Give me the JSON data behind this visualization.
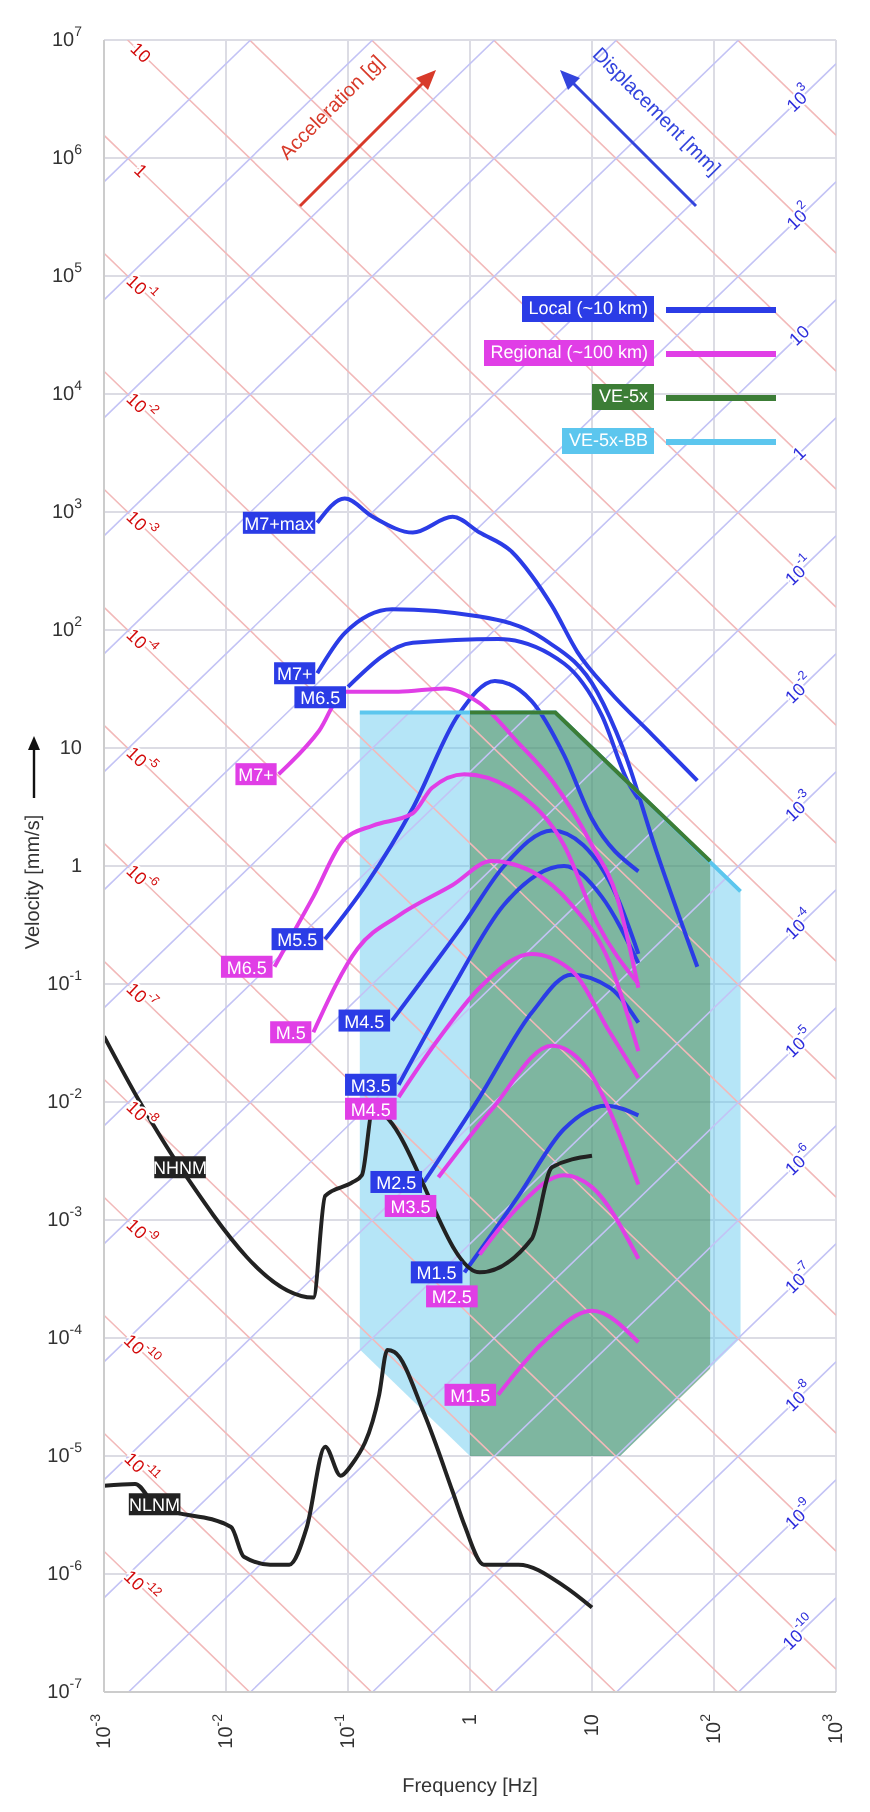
{
  "chart_data": {
    "type": "line",
    "xlabel": "Frequency [Hz]",
    "ylabel": "Velocity [mm/s]",
    "log": "xy",
    "grid": true,
    "legend": "top right",
    "xlim": [
      0.001,
      1000
    ],
    "ylim": [
      1e-07,
      10000000.0
    ],
    "xticks": [
      {
        "value": 0.001,
        "label": "10$^{-3}$"
      },
      {
        "value": 0.01,
        "label": "10$^{-2}$"
      },
      {
        "value": 0.1,
        "label": "10$^{-1}$"
      },
      1,
      10,
      {
        "value": 100,
        "label": "10$^{2}$"
      },
      {
        "value": 1000,
        "label": "10$^{3}$"
      }
    ],
    "yticks": [
      {
        "value": 1e-07,
        "label": "10$^{-7}$"
      },
      {
        "value": 1e-06,
        "label": "10$^{-6}$"
      },
      {
        "value": 1e-05,
        "label": "10$^{-5}$"
      },
      {
        "value": 0.0001,
        "label": "10$^{-4}$"
      },
      {
        "value": 0.001,
        "label": "10$^{-3}$"
      },
      {
        "value": 0.01,
        "label": "10$^{-2}$"
      },
      {
        "value": 0.1,
        "label": "10$^{-1}$"
      },
      1,
      10,
      {
        "value": 100,
        "label": "10$^{2}$"
      },
      {
        "value": 1000,
        "label": "10$^{3}$"
      },
      {
        "value": 10000,
        "label": "10$^{4}$"
      },
      {
        "value": 100000,
        "label": "10$^{5}$"
      },
      {
        "value": 1000000,
        "label": "10$^{6}$"
      },
      {
        "value": 10000000,
        "label": "10$^{7}$"
      }
    ],
    "series": [
      {
        "type": "line",
        "color": "#f2b9b9",
        "x": [
          156,
          1000
        ],
        "values": [
          10000000.0,
          1560000.0
        ]
      },
      {
        "type": "line",
        "color": "#f2b9b9",
        "x": [
          15.6,
          1000
        ],
        "values": [
          10000000.0,
          156000.0
        ]
      },
      {
        "type": "line",
        "color": "#f2b9b9",
        "x": [
          1.56,
          1000
        ],
        "values": [
          10000000.0,
          15600.0
        ]
      },
      {
        "type": "line",
        "color": "#f2b9b9",
        "x": [
          0.156,
          1000
        ],
        "values": [
          10000000.0,
          1560
        ]
      },
      {
        "type": "line",
        "color": "#f2b9b9",
        "x": [
          0.0156,
          1000
        ],
        "values": [
          10000000.0,
          156
        ]
      },
      {
        "type": "line",
        "color": "#f2b9b9",
        "x": [
          0.00156,
          0.002,
          1000
        ],
        "values": [
          10000000.0,
          7800000.0,
          15.6
        ]
      },
      {
        "type": "line",
        "color": "#f2b9b9",
        "x": [
          0.001,
          0.002,
          1000
        ],
        "values": [
          1560000.0,
          780000.0,
          1.56
        ]
      },
      {
        "type": "line",
        "color": "#f2b9b9",
        "x": [
          0.001,
          0.002,
          1000
        ],
        "values": [
          156000.0,
          78000.0,
          0.156
        ]
      },
      {
        "type": "line",
        "color": "#f2b9b9",
        "x": [
          0.001,
          0.002,
          1000
        ],
        "values": [
          15600.0,
          7800,
          0.0156
        ]
      },
      {
        "type": "line",
        "color": "#f2b9b9",
        "x": [
          0.001,
          0.002,
          1000
        ],
        "values": [
          1560,
          780,
          0.00156
        ]
      },
      {
        "type": "line",
        "color": "#f2b9b9",
        "x": [
          0.001,
          0.002,
          1000
        ],
        "values": [
          156,
          78,
          0.000156
        ]
      },
      {
        "type": "line",
        "color": "#f2b9b9",
        "x": [
          0.001,
          0.002,
          1000
        ],
        "values": [
          15.6,
          7.8,
          1.56e-05
        ]
      },
      {
        "type": "line",
        "color": "#f2b9b9",
        "x": [
          0.001,
          0.002,
          1000
        ],
        "values": [
          1.56,
          0.78,
          1.56e-06
        ]
      },
      {
        "type": "line",
        "color": "#f2b9b9",
        "x": [
          0.001,
          0.002,
          1000
        ],
        "values": [
          0.156,
          0.078,
          1.56e-07
        ]
      },
      {
        "type": "line",
        "color": "#f2b9b9",
        "x": [
          0.001,
          0.002,
          156
        ],
        "values": [
          0.0156,
          0.0078,
          1e-07
        ]
      },
      {
        "type": "line",
        "color": "#f2b9b9",
        "x": [
          0.001,
          0.002,
          15.6
        ],
        "values": [
          0.00156,
          0.00078,
          1e-07
        ]
      },
      {
        "type": "line",
        "color": "#f2b9b9",
        "x": [
          0.001,
          0.002,
          1.56
        ],
        "values": [
          0.000156,
          7.8e-05,
          1e-07
        ]
      },
      {
        "type": "line",
        "color": "#f2b9b9",
        "x": [
          0.001,
          0.002,
          0.156
        ],
        "values": [
          1.56e-05,
          7.8e-06,
          1e-07
        ]
      },
      {
        "type": "line",
        "color": "#f2b9b9",
        "x": [
          0.001,
          0.002,
          0.0156
        ],
        "values": [
          1.56e-06,
          7.8e-07,
          1e-07
        ]
      },
      {
        "type": "line",
        "color": "#c3c3f5",
        "x": [
          0.001,
          0.0159
        ],
        "values": [
          628000.0,
          10000000.0
        ]
      },
      {
        "type": "line",
        "color": "#c3c3f5",
        "x": [
          0.001,
          0.159
        ],
        "values": [
          62800.0,
          10000000.0
        ]
      },
      {
        "type": "line",
        "color": "#c3c3f5",
        "x": [
          0.001,
          1.59
        ],
        "values": [
          6280,
          10000000.0
        ]
      },
      {
        "type": "line",
        "color": "#c3c3f5",
        "x": [
          0.001,
          15.9
        ],
        "values": [
          628,
          10000000.0
        ]
      },
      {
        "type": "line",
        "color": "#c3c3f5",
        "x": [
          0.001,
          159
        ],
        "values": [
          62.8,
          10000000.0
        ]
      },
      {
        "type": "line",
        "color": "#c3c3f5",
        "x": [
          0.001,
          500,
          1000
        ],
        "values": [
          6.28,
          3140000.0,
          6280000.0
        ]
      },
      {
        "type": "line",
        "color": "#c3c3f5",
        "x": [
          0.001,
          500,
          1000
        ],
        "values": [
          0.628,
          314000.0,
          628000.0
        ]
      },
      {
        "type": "line",
        "color": "#c3c3f5",
        "x": [
          0.001,
          500,
          1000
        ],
        "values": [
          0.0628,
          31400.0,
          62800.0
        ]
      },
      {
        "type": "line",
        "color": "#c3c3f5",
        "x": [
          0.001,
          500,
          1000
        ],
        "values": [
          0.00628,
          3140,
          6280
        ]
      },
      {
        "type": "line",
        "color": "#c3c3f5",
        "x": [
          0.001,
          500,
          1000
        ],
        "values": [
          0.000628,
          314,
          628
        ]
      },
      {
        "type": "line",
        "color": "#c3c3f5",
        "x": [
          0.001,
          500,
          1000
        ],
        "values": [
          6.28e-05,
          31.4,
          62.8
        ]
      },
      {
        "type": "line",
        "color": "#c3c3f5",
        "x": [
          0.001,
          500,
          1000
        ],
        "values": [
          6.28e-06,
          3.14,
          6.28
        ]
      },
      {
        "type": "line",
        "color": "#c3c3f5",
        "x": [
          0.001,
          500,
          1000
        ],
        "values": [
          6.28e-07,
          0.314,
          0.628
        ]
      },
      {
        "type": "line",
        "color": "#c3c3f5",
        "x": [
          0.00159,
          500,
          1000
        ],
        "values": [
          1e-07,
          0.0314,
          0.0628
        ]
      },
      {
        "type": "line",
        "color": "#c3c3f5",
        "x": [
          0.0159,
          500,
          1000
        ],
        "values": [
          1e-07,
          0.00314,
          0.00628
        ]
      },
      {
        "type": "line",
        "color": "#c3c3f5",
        "x": [
          0.159,
          500,
          1000
        ],
        "values": [
          1e-07,
          0.000314,
          0.000628
        ]
      },
      {
        "type": "line",
        "color": "#c3c3f5",
        "x": [
          1.59,
          500,
          1000
        ],
        "values": [
          1e-07,
          3.14e-05,
          6.28e-05
        ]
      },
      {
        "type": "line",
        "color": "#c3c3f5",
        "x": [
          15.9,
          500,
          1000
        ],
        "values": [
          1e-07,
          3.14e-06,
          6.28e-06
        ]
      },
      {
        "type": "line",
        "color": "#c3c3f5",
        "x": [
          159,
          500,
          1000
        ],
        "values": [
          1e-07,
          3.14e-07,
          6.28e-07
        ]
      },
      {
        "type": "line",
        "name": "Local (~10 km)",
        "color": "#2b3ce6",
        "x": [
          0.056,
          0.094,
          0.16,
          0.34,
          0.72,
          1.2,
          2.2,
          3.2,
          4.7,
          7.6,
          14,
          31,
          73
        ],
        "values": [
          810,
          1300,
          910,
          670,
          910,
          670,
          460,
          290,
          160,
          65,
          30,
          13,
          5.3
        ]
      },
      {
        "type": "line",
        "color": "#2b3ce6",
        "x": [
          0.056,
          0.094,
          0.23,
          1.2,
          4.0,
          11,
          18,
          34,
          73
        ],
        "values": [
          43,
          94,
          150,
          130,
          84,
          30,
          9.8,
          1.3,
          0.14
        ]
      },
      {
        "type": "line",
        "color": "#2b3ce6",
        "x": [
          0.1,
          0.34,
          1.7,
          5.9,
          12,
          20,
          24
        ],
        "values": [
          33,
          78,
          84,
          52,
          19,
          5.0,
          3.7
        ]
      },
      {
        "type": "line",
        "color": "#2b3ce6",
        "x": [
          0.065,
          0.14,
          0.34,
          0.8,
          1.6,
          3.2,
          5.9,
          10,
          24
        ],
        "values": [
          0.24,
          0.69,
          3.1,
          19,
          37,
          25,
          8.7,
          2.5,
          0.9
        ]
      },
      {
        "type": "line",
        "color": "#2b3ce6",
        "x": [
          0.23,
          0.49,
          0.9,
          1.9,
          4.7,
          8.5,
          16,
          24
        ],
        "values": [
          0.049,
          0.14,
          0.33,
          1.0,
          2.0,
          1.5,
          0.55,
          0.18
        ]
      },
      {
        "type": "line",
        "color": "#2b3ce6",
        "x": [
          0.26,
          0.72,
          1.9,
          5.9,
          12,
          24
        ],
        "values": [
          0.014,
          0.093,
          0.47,
          1.0,
          0.55,
          0.15
        ]
      },
      {
        "type": "line",
        "color": "#2b3ce6",
        "x": [
          0.42,
          1.2,
          3.2,
          6.8,
          14,
          24
        ],
        "values": [
          0.0021,
          0.011,
          0.057,
          0.12,
          0.093,
          0.047
        ]
      },
      {
        "type": "line",
        "color": "#2b3ce6",
        "x": [
          0.9,
          2.5,
          5.9,
          13,
          24
        ],
        "values": [
          0.00036,
          0.0016,
          0.0059,
          0.0093,
          0.0077
        ]
      },
      {
        "type": "line",
        "name": "Regional (~100 km)",
        "color": "#e03ee6",
        "x": [
          0.027,
          0.058,
          0.094,
          0.26,
          0.62,
          1.2,
          2.5,
          4.7,
          10,
          16,
          24
        ],
        "values": [
          6.0,
          14,
          30,
          30,
          32,
          24,
          11,
          5.3,
          1.5,
          0.55,
          0.093
        ]
      },
      {
        "type": "line",
        "color": "#e03ee6",
        "x": [
          0.025,
          0.052,
          0.094,
          0.16,
          0.34,
          0.49,
          0.9,
          2.5,
          5.9,
          11,
          24
        ],
        "values": [
          0.14,
          0.55,
          1.7,
          2.2,
          2.8,
          4.6,
          6.0,
          4.1,
          1.5,
          0.33,
          0.1
        ]
      },
      {
        "type": "line",
        "color": "#e03ee6",
        "x": [
          0.052,
          0.12,
          0.26,
          0.72,
          1.5,
          3.2,
          6.8,
          14,
          24
        ],
        "values": [
          0.039,
          0.2,
          0.38,
          0.69,
          1.1,
          0.9,
          0.47,
          0.15,
          0.027
        ]
      },
      {
        "type": "line",
        "color": "#e03ee6",
        "x": [
          0.26,
          0.55,
          1.2,
          3.2,
          6.8,
          14,
          24
        ],
        "values": [
          0.011,
          0.034,
          0.093,
          0.18,
          0.13,
          0.039,
          0.016
        ]
      },
      {
        "type": "line",
        "color": "#e03ee6",
        "x": [
          0.55,
          1.5,
          4.7,
          8.5,
          24
        ],
        "values": [
          0.0023,
          0.0086,
          0.03,
          0.021,
          0.002
        ]
      },
      {
        "type": "line",
        "color": "#e03ee6",
        "x": [
          1.2,
          2.5,
          5.9,
          10,
          24
        ],
        "values": [
          0.00051,
          0.0013,
          0.0024,
          0.0019,
          0.00047
        ]
      },
      {
        "type": "line",
        "color": "#e03ee6",
        "x": [
          1.7,
          4.0,
          10,
          24
        ],
        "values": [
          3.3e-05,
          9.2e-05,
          0.00017,
          9.2e-05
        ]
      },
      {
        "type": "line",
        "color": "#222222",
        "x": [
          0.001,
          0.002,
          0.0042,
          0.052,
          0.065,
          0.11,
          0.13,
          0.16,
          1.2,
          3.2,
          4.7,
          10
        ],
        "values": [
          0.036,
          0.0097,
          0.0028,
          0.00022,
          0.0016,
          0.0021,
          0.0024,
          0.0086,
          0.00036,
          0.00069,
          0.0028,
          0.0035
        ]
      },
      {
        "type": "line",
        "color": "#222222",
        "x": [
          0.001,
          0.0018,
          0.0026,
          0.011,
          0.014,
          0.023,
          0.033,
          0.046,
          0.065,
          0.087,
          0.105,
          0.18,
          0.21,
          0.24,
          0.42,
          0.72,
          0.9,
          1.3,
          2.5,
          5.9,
          10
        ],
        "values": [
          5.6e-06,
          5.8e-06,
          3.9e-06,
          2.5e-06,
          1.4e-06,
          1.2e-06,
          1.2e-06,
          2.5e-06,
          1.2e-05,
          6.8e-06,
          8.2e-06,
          3.3e-05,
          7.9e-05,
          7.6e-05,
          2.3e-05,
          5e-06,
          2.6e-06,
          1.2e-06,
          1.2e-06,
          7.9e-07,
          5.2e-07
        ]
      },
      {
        "name": "VE-5x",
        "color": "#3c7d36",
        "x": [
          1,
          5,
          17,
          93
        ],
        "values": [
          20,
          20,
          5.9,
          1.1
        ],
        "upper": [
          20,
          20,
          5.9,
          1.1
        ],
        "lower": [
          1e-05,
          1e-05,
          1e-05,
          5.5e-05
        ]
      },
      {
        "name": "VE-5x-BB",
        "color": "#5cc6ee",
        "x": [
          0.125,
          1,
          5,
          17,
          165
        ],
        "values": [
          20,
          20,
          20,
          5.9,
          0.61
        ],
        "upper": [
          20,
          20,
          20,
          5.9,
          0.61
        ],
        "lower": [
          8e-05,
          1e-05,
          1e-05,
          1e-05,
          0.0001
        ]
      }
    ],
    "annotations": [
      "Acceleration [g]",
      "Displacement [mm]",
      {
        "text": "10",
        "x": 0.002,
        "y": 7800000.0
      },
      {
        "text": "1",
        "x": 0.002,
        "y": 780000.0
      },
      {
        "text": "10$^{-1}$",
        "x": 0.002,
        "y": 78000.0
      },
      {
        "text": "10$^{-2}$",
        "x": 0.002,
        "y": 7800
      },
      {
        "text": "10$^{-3}$",
        "x": 0.002,
        "y": 780
      },
      {
        "text": "10$^{-4}$",
        "x": 0.002,
        "y": 78
      },
      {
        "text": "10$^{-5}$",
        "x": 0.002,
        "y": 7.8
      },
      {
        "text": "10$^{-6}$",
        "x": 0.002,
        "y": 0.78
      },
      {
        "text": "10$^{-7}$",
        "x": 0.002,
        "y": 0.078
      },
      {
        "text": "10$^{-8}$",
        "x": 0.002,
        "y": 0.0078
      },
      {
        "text": "10$^{-9}$",
        "x": 0.002,
        "y": 0.00078
      },
      {
        "text": "10$^{-10}$",
        "x": 0.002,
        "y": 7.8e-05
      },
      {
        "text": "10$^{-11}$",
        "x": 0.002,
        "y": 7.8e-06
      },
      {
        "text": "10$^{-12}$",
        "x": 0.002,
        "y": 7.8e-07
      },
      {
        "text": "10$^{3}$",
        "x": 500,
        "y": 3140000.0
      },
      {
        "text": "10$^{2}$",
        "x": 500,
        "y": 314000.0
      },
      {
        "text": "10",
        "x": 500,
        "y": 31400.0
      },
      {
        "text": "1",
        "x": 500,
        "y": 3140
      },
      {
        "text": "10$^{-1}$",
        "x": 500,
        "y": 314
      },
      {
        "text": "10$^{-2}$",
        "x": 500,
        "y": 31.4
      },
      {
        "text": "10$^{-3}$",
        "x": 500,
        "y": 3.14
      },
      {
        "text": "10$^{-4}$",
        "x": 500,
        "y": 0.314
      },
      {
        "text": "10$^{-5}$",
        "x": 500,
        "y": 0.0314
      },
      {
        "text": "10$^{-6}$",
        "x": 500,
        "y": 0.00314
      },
      {
        "text": "10$^{-7}$",
        "x": 500,
        "y": 0.000314
      },
      {
        "text": "10$^{-8}$",
        "x": 500,
        "y": 3.14e-05
      },
      {
        "text": "10$^{-9}$",
        "x": 500,
        "y": 3.14e-06
      },
      {
        "text": "10$^{-10}$",
        "x": 500,
        "y": 3.14e-07
      },
      {
        "text": "M7+max",
        "x": 0.056,
        "y": 810
      },
      {
        "text": "M7+",
        "x": 0.056,
        "y": 43
      },
      {
        "text": "M6.5",
        "x": 0.1,
        "y": 33
      },
      {
        "text": "M5.5",
        "x": 0.065,
        "y": 0.24
      },
      {
        "text": "M4.5",
        "x": 0.23,
        "y": 0.049
      },
      {
        "text": "M3.5",
        "x": 0.26,
        "y": 0.014
      },
      {
        "text": "M2.5",
        "x": 0.42,
        "y": 0.0021
      },
      {
        "text": "M1.5",
        "x": 0.9,
        "y": 0.00036
      },
      {
        "text": "M7+",
        "x": 0.027,
        "y": 6.0
      },
      {
        "text": "M6.5",
        "x": 0.025,
        "y": 0.14
      },
      {
        "text": "M.5",
        "x": 0.052,
        "y": 0.039
      },
      {
        "text": "M4.5",
        "x": 0.26,
        "y": 0.011
      },
      {
        "text": "M3.5",
        "x": 0.55,
        "y": 0.0023
      },
      {
        "text": "M2.5",
        "x": 1.2,
        "y": 0.00051
      },
      {
        "text": "M1.5",
        "x": 1.7,
        "y": 3.3e-05
      },
      {
        "text": "NHNM",
        "x": 0.0042,
        "y": 0.0028
      },
      {
        "text": "NLNM",
        "x": 0.0026,
        "y": 3.9e-06
      }
    ]
  }
}
